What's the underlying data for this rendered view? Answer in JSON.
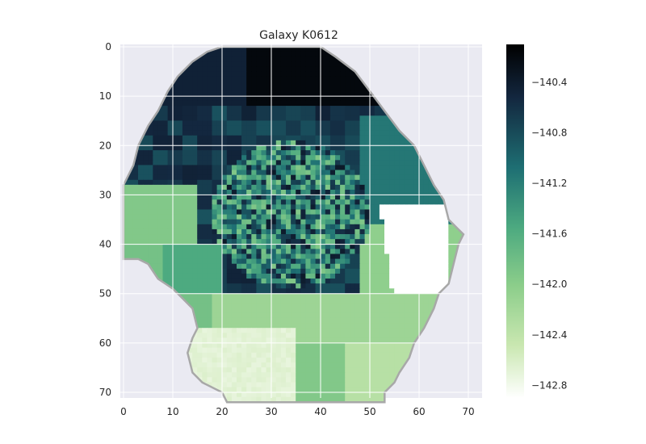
{
  "chart_data": {
    "type": "heatmap",
    "title": "Galaxy K0612",
    "xlabel": "",
    "ylabel": "",
    "xlim": [
      0,
      72
    ],
    "ylim": [
      72,
      0
    ],
    "x_ticks": [
      0,
      10,
      20,
      30,
      40,
      50,
      60,
      70
    ],
    "y_ticks": [
      0,
      10,
      20,
      30,
      40,
      50,
      60,
      70
    ],
    "grid": true,
    "colormap": [
      "#000000",
      "#13273f",
      "#1e6f73",
      "#4daa80",
      "#8bcd8a",
      "#c9e7b0",
      "#ffffff"
    ],
    "colorbar": {
      "range": [
        -142.9,
        -140.1
      ],
      "ticks": [
        -140.4,
        -140.8,
        -141.2,
        -141.6,
        -142.0,
        -142.4,
        -142.8
      ],
      "tick_labels": [
        "−140.4",
        "−140.8",
        "−141.2",
        "−141.6",
        "−142.0",
        "−142.4",
        "−142.8"
      ]
    },
    "regions": [
      {
        "label": "outer top (dark navy)",
        "value": -140.3
      },
      {
        "label": "upper-left arc",
        "value": -140.6
      },
      {
        "label": "right lobe (teal)",
        "value": -141.1
      },
      {
        "label": "core (mixed, mean)",
        "value": -140.9
      },
      {
        "label": "left lobe (light green)",
        "value": -141.9
      },
      {
        "label": "lower-left (green)",
        "value": -141.6
      },
      {
        "label": "lower band",
        "value": -142.1
      },
      {
        "label": "bottom (pale)",
        "value": -142.6
      },
      {
        "label": "right notch (white)",
        "value": -142.9
      }
    ],
    "colors": {
      "axes_background": "#eaeaf2",
      "grid": "#ffffff",
      "outline": "#a8a8a8"
    }
  }
}
